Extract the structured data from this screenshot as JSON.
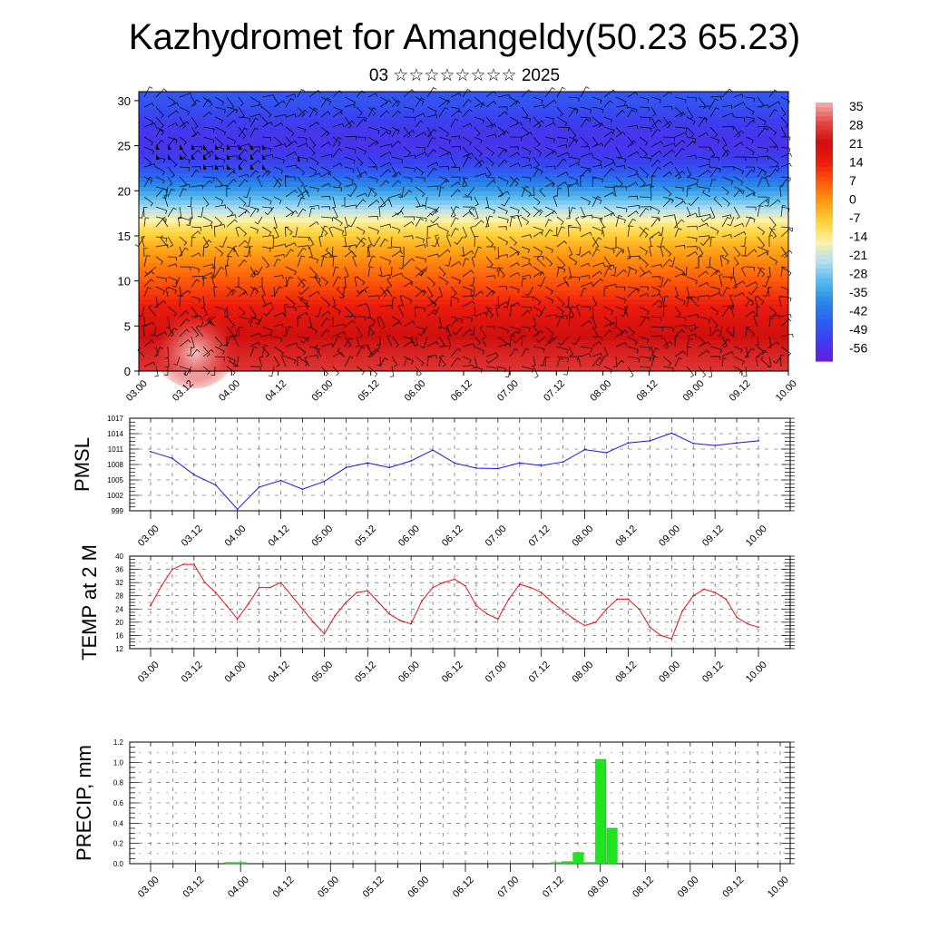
{
  "header": {
    "title": "Kazhydromet for Amangeldy(50.23 65.23)",
    "subtitle": "03 ☆☆☆☆☆☆☆☆ 2025"
  },
  "chart_data": [
    {
      "type": "heatmap",
      "title": "",
      "ylabel": "",
      "x_ticks": [
        "03.00",
        "03.12",
        "04.00",
        "04.12",
        "05.00",
        "05.12",
        "06.00",
        "06.12",
        "07.00",
        "07.12",
        "08.00",
        "08.12",
        "09.00",
        "09.12",
        "10.00"
      ],
      "y_ticks": [
        0,
        5,
        10,
        15,
        20,
        25,
        30
      ],
      "ylim": [
        0,
        31
      ],
      "colorbar": {
        "labels": [
          35,
          28,
          21,
          14,
          7,
          0,
          -7,
          -14,
          -21,
          -28,
          -35,
          -42,
          -49,
          -56
        ],
        "range": [
          -63,
          38
        ],
        "colors": [
          "#6a1be0",
          "#3e3cf0",
          "#2d5ff2",
          "#2a8ae6",
          "#56b9ee",
          "#b2e0f2",
          "#fff2a6",
          "#ffd23a",
          "#ff9a14",
          "#ff5a0a",
          "#ec1b0e",
          "#d00f0f",
          "#e64646",
          "#f6b0b0"
        ]
      },
      "temperature_profile_z": [
        0,
        3,
        6,
        9,
        12,
        14,
        15,
        16,
        17,
        18,
        19,
        20,
        21,
        22,
        23,
        24,
        25,
        26,
        27,
        28,
        29,
        30,
        31
      ],
      "temperature_profile_t": [
        28,
        24,
        18,
        10,
        2,
        -4,
        -8,
        -12,
        -18,
        -24,
        -30,
        -36,
        -42,
        -48,
        -53,
        -56,
        -57,
        -57,
        -56,
        -54,
        -52,
        -50,
        -50
      ],
      "wind_barbs": "dense field of black wind barbs over the whole cross-section"
    },
    {
      "type": "line",
      "ylabel": "PMSL",
      "x_ticks": [
        "03.00",
        "03.12",
        "04.00",
        "04.12",
        "05.00",
        "05.12",
        "06.00",
        "06.12",
        "07.00",
        "07.12",
        "08.00",
        "08.12",
        "09.00",
        "09.12",
        "10.00"
      ],
      "y_ticks": [
        999,
        1002,
        1005,
        1008,
        1011,
        1014,
        1017
      ],
      "ylim": [
        999,
        1017
      ],
      "color": "#1515e6",
      "x": [
        0,
        0.25,
        0.5,
        0.75,
        1,
        1.25,
        1.5,
        1.75,
        2,
        2.25,
        2.5,
        2.75,
        3,
        3.25,
        3.5,
        3.75,
        4,
        4.25,
        4.5,
        4.75,
        5,
        5.25,
        5.5,
        5.75,
        6,
        6.25,
        6.5,
        6.75,
        7
      ],
      "values": [
        1010.5,
        1009.2,
        1006.0,
        1004.0,
        999.3,
        1003.6,
        1004.9,
        1003.2,
        1004.7,
        1007.4,
        1008.3,
        1007.4,
        1008.7,
        1010.8,
        1008.3,
        1007.3,
        1007.2,
        1008.3,
        1007.8,
        1008.5,
        1010.9,
        1010.3,
        1012.2,
        1012.6,
        1014.1,
        1012.1,
        1011.7,
        1012.2,
        1012.6
      ]
    },
    {
      "type": "line",
      "ylabel": "TEMP at 2 M",
      "x_ticks": [
        "03.00",
        "03.12",
        "04.00",
        "04.12",
        "05.00",
        "05.12",
        "06.00",
        "06.12",
        "07.00",
        "07.12",
        "08.00",
        "08.12",
        "09.00",
        "09.12",
        "10.00"
      ],
      "y_ticks": [
        12,
        16,
        20,
        24,
        28,
        32,
        36,
        40
      ],
      "ylim": [
        12,
        40
      ],
      "color": "#e01010",
      "x": [
        0,
        0.125,
        0.25,
        0.375,
        0.5,
        0.625,
        0.75,
        0.875,
        1,
        1.125,
        1.25,
        1.375,
        1.5,
        1.625,
        1.75,
        1.875,
        2,
        2.125,
        2.25,
        2.375,
        2.5,
        2.625,
        2.75,
        2.875,
        3,
        3.125,
        3.25,
        3.375,
        3.5,
        3.625,
        3.75,
        3.875,
        4,
        4.125,
        4.25,
        4.375,
        4.5,
        4.625,
        4.75,
        4.875,
        5,
        5.125,
        5.25,
        5.375,
        5.5,
        5.625,
        5.75,
        5.875,
        6,
        6.125,
        6.25,
        6.375,
        6.5,
        6.625,
        6.75,
        6.875,
        7
      ],
      "values": [
        25,
        31,
        36,
        37.5,
        37.5,
        32,
        29,
        25,
        21,
        25.5,
        30.5,
        30.5,
        32,
        28,
        24,
        20,
        16.5,
        22,
        26,
        29,
        29.5,
        26,
        22.5,
        20.5,
        19.5,
        26.5,
        30.5,
        32,
        33,
        31,
        25,
        22.5,
        21,
        27,
        31.5,
        30.5,
        29,
        26,
        23.5,
        21,
        19,
        20,
        24,
        27,
        27,
        24,
        18.5,
        16,
        15,
        23.5,
        28,
        30,
        29,
        27,
        21.5,
        19.5,
        18.5
      ]
    },
    {
      "type": "bar",
      "ylabel": "PRECIP, mm",
      "x_ticks": [
        "03.00",
        "03.12",
        "04.00",
        "04.12",
        "05.00",
        "05.12",
        "06.00",
        "06.12",
        "07.00",
        "07.12",
        "08.00",
        "08.12",
        "09.00",
        "09.12",
        "10.00"
      ],
      "y_ticks": [
        0.0,
        0.2,
        0.4,
        0.6,
        0.8,
        1.0,
        1.2
      ],
      "ylim": [
        0,
        1.2
      ],
      "color": "#1ee61e",
      "x": [
        0.875,
        1.0,
        4.5,
        4.625,
        4.75,
        4.875,
        5.0,
        5.125
      ],
      "values": [
        0.012,
        0.012,
        0.011,
        0.02,
        0.11,
        0.012,
        1.03,
        0.35
      ]
    }
  ]
}
